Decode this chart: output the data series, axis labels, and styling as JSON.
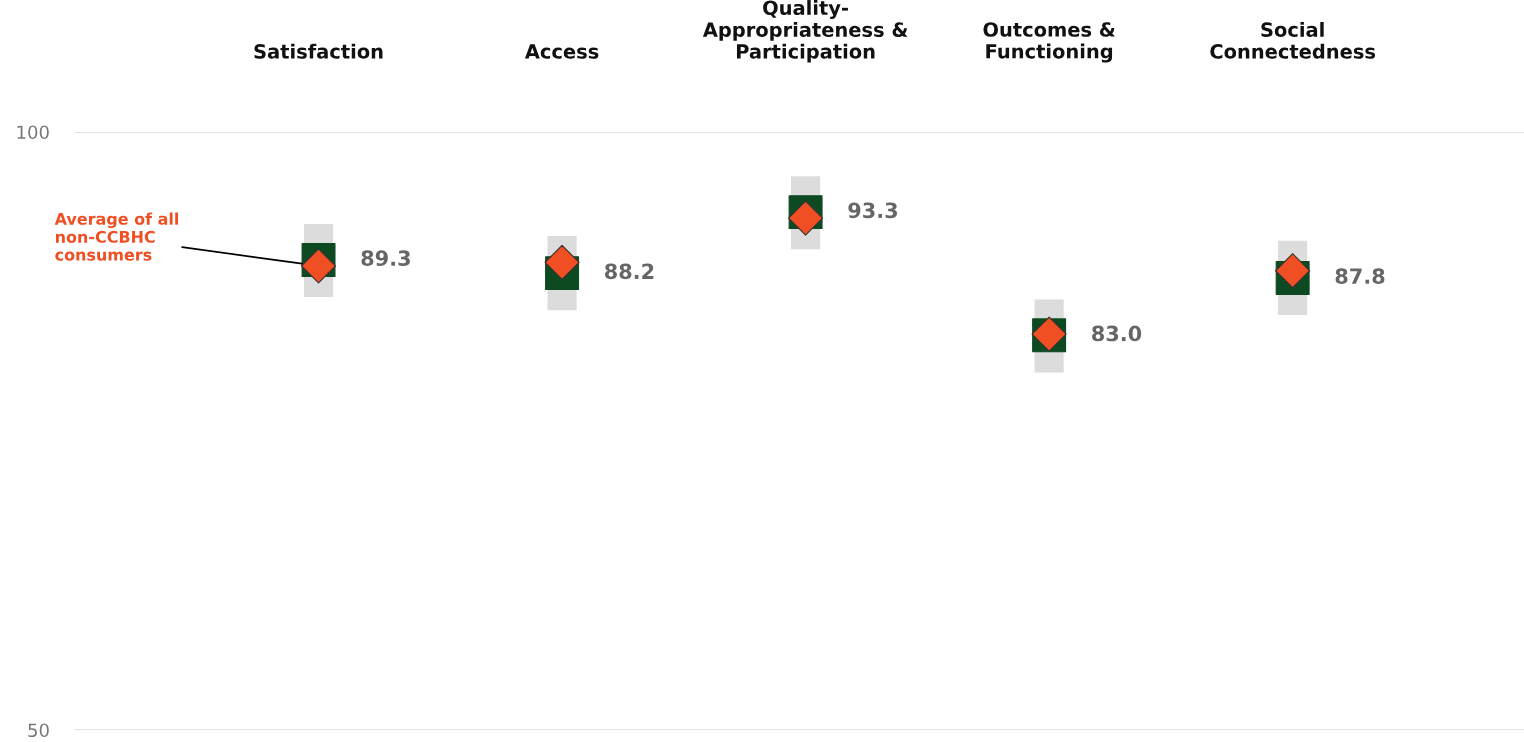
{
  "chart_data": {
    "type": "scatter",
    "categories": [
      "Satisfaction",
      "Access",
      "Quality-\nAppropriateness &\nParticipation",
      "Outcomes &\nFunctioning",
      "Social\nConnectedness"
    ],
    "series": [
      {
        "color": "#0d4a22",
        "marker": "square",
        "values": [
          89.3,
          88.2,
          93.3,
          83.0,
          87.8
        ],
        "value_labels": [
          "89.3",
          "88.2",
          "93.3",
          "83.0",
          "87.8"
        ],
        "errors": [
          [
            86.2,
            92.3
          ],
          [
            85.1,
            91.3
          ],
          [
            90.2,
            96.3
          ],
          [
            79.9,
            86.0
          ],
          [
            84.7,
            90.9
          ]
        ]
      },
      {
        "name": "Average of all\nnon-CCBHC\nconsumers",
        "color": "#f04e23",
        "marker": "diamond",
        "values": [
          88.8,
          89.1,
          92.8,
          83.1,
          88.4
        ]
      }
    ],
    "ylim": [
      50,
      100
    ],
    "yticks": [
      50,
      100
    ],
    "grid": "y",
    "legend": false
  }
}
